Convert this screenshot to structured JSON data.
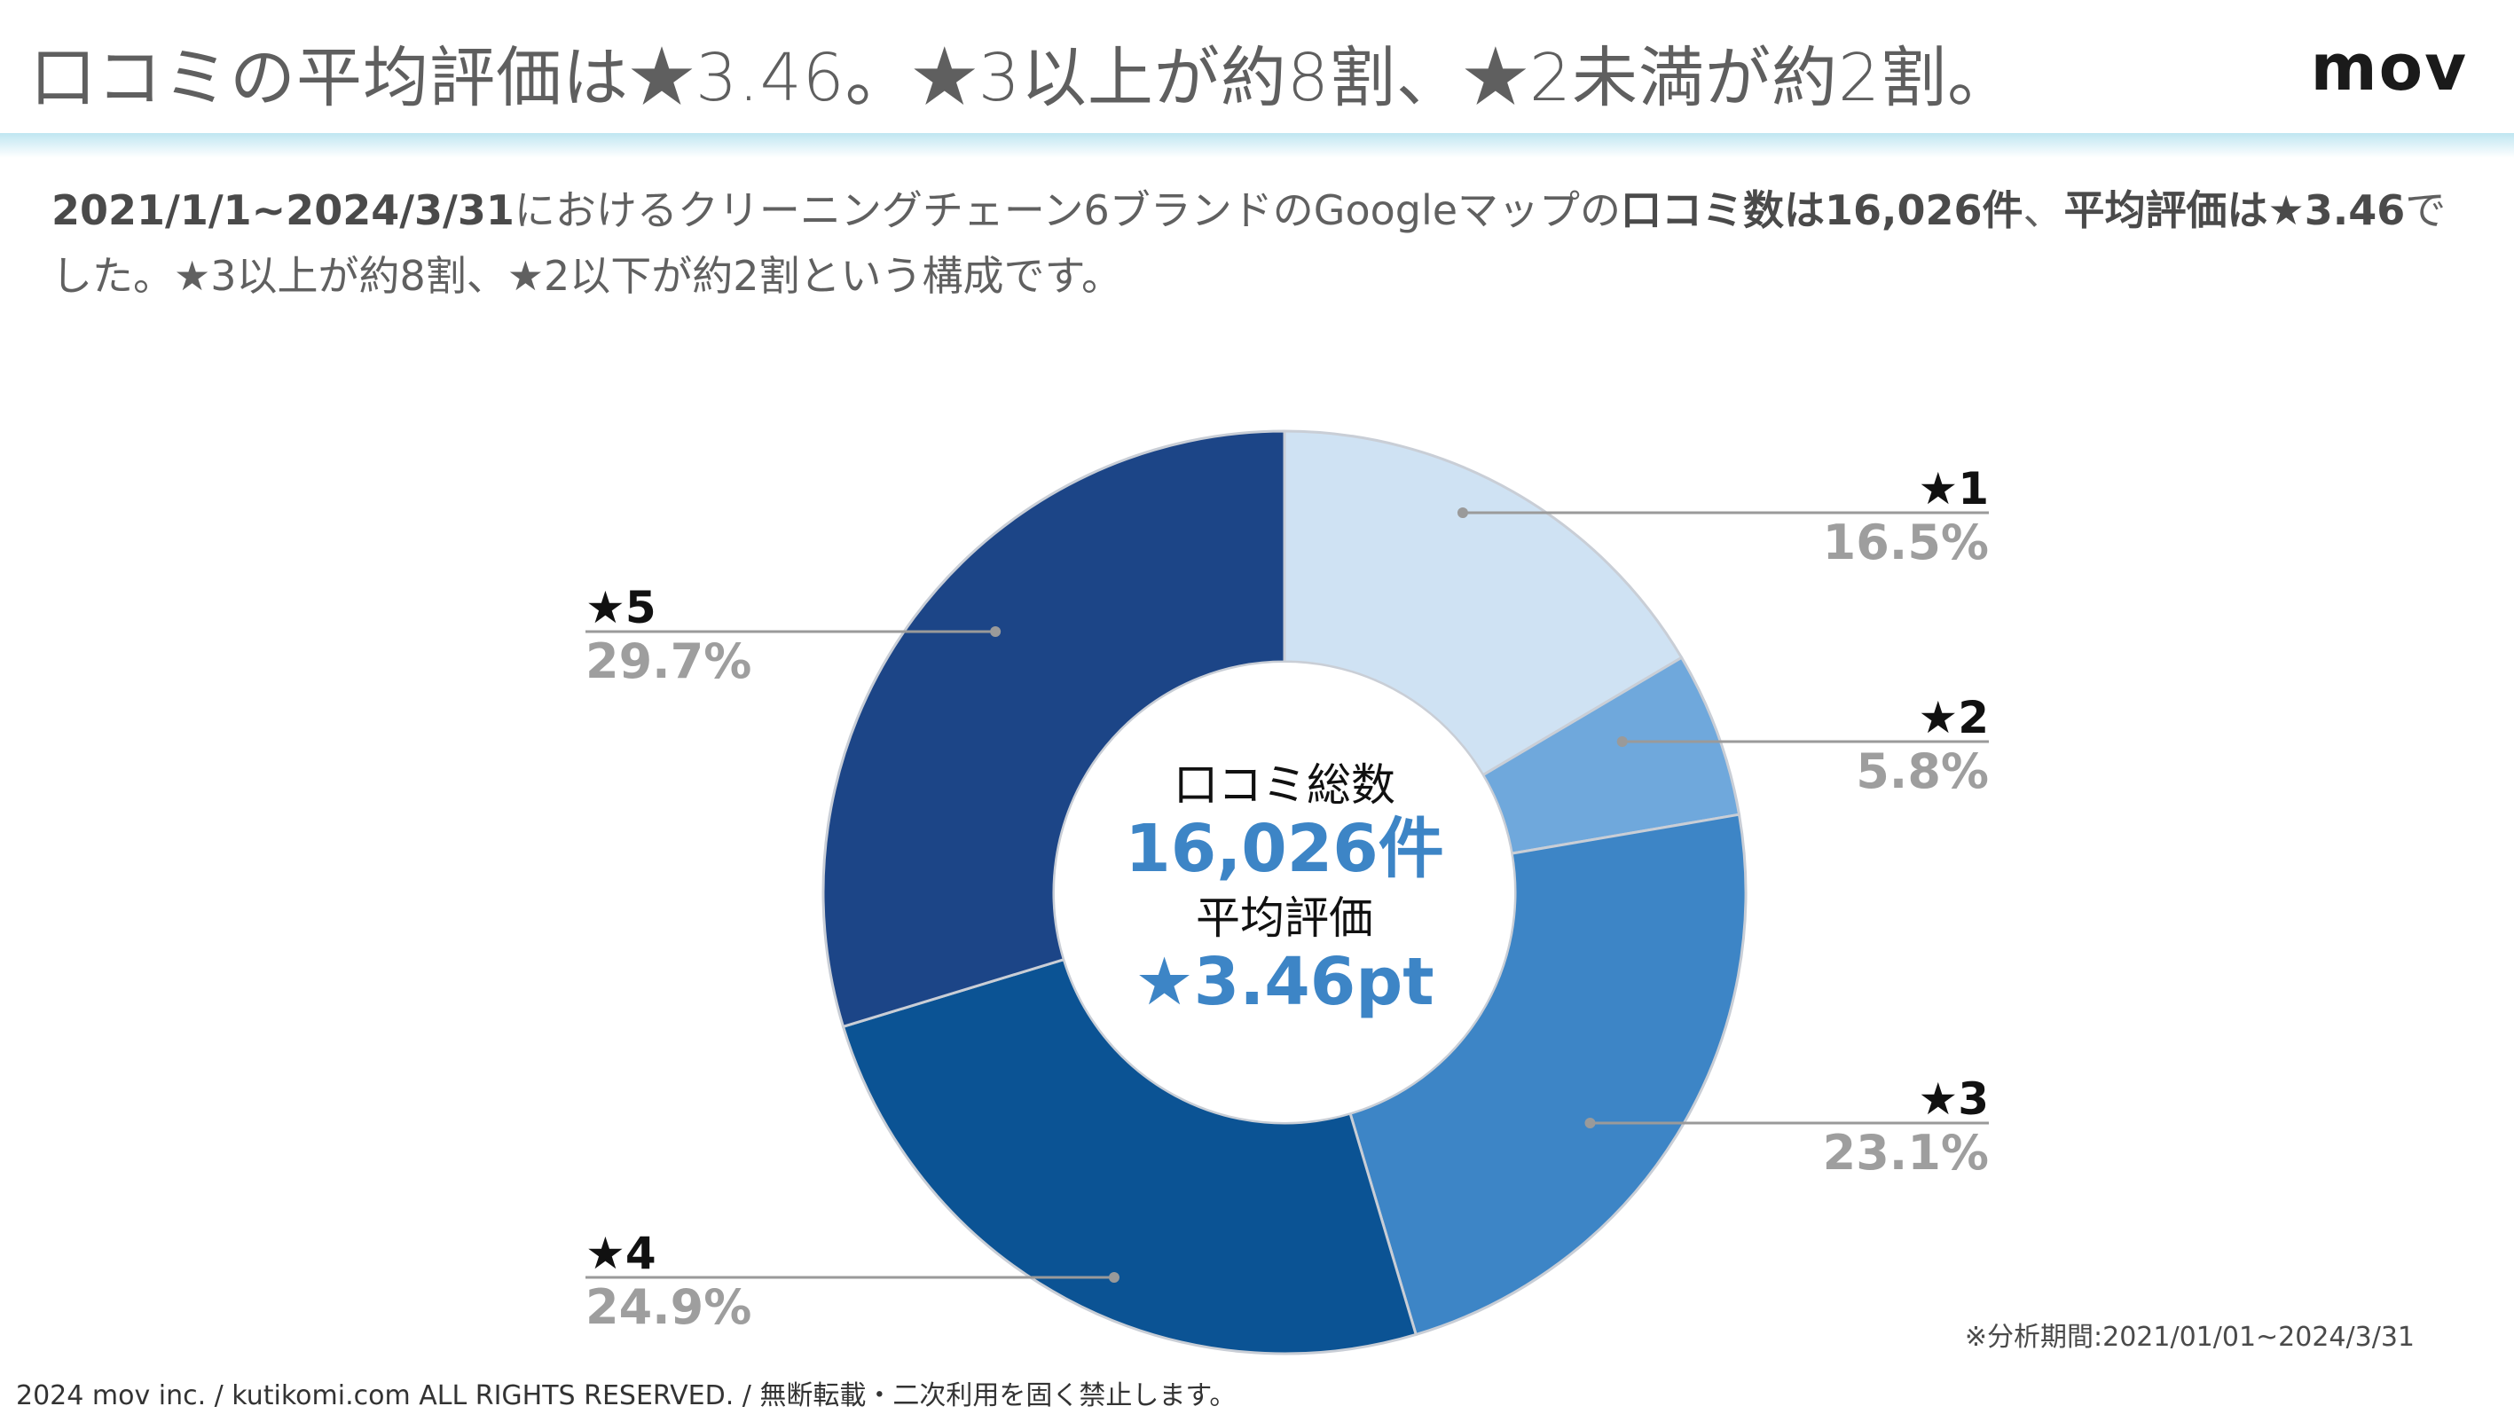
{
  "header": {
    "title": "口コミの平均評価は★3.46。★3以上が約8割、★2未満が約2割。",
    "logo": "mov"
  },
  "description": {
    "p1": "2021/1/1~2024/3/31",
    "p2": "におけるクリーニングチェーン6ブランドのGoogleマップの",
    "p3": "口コミ数は16,026件",
    "p4": "、",
    "p5": "平均評価は★3.46",
    "p6": "でした。★3以上が約8割、★2以下が約2割という構成です。"
  },
  "chart_data": {
    "type": "pie",
    "categories": [
      "★1",
      "★2",
      "★3",
      "★4",
      "★5"
    ],
    "values": [
      16.5,
      5.8,
      23.1,
      24.9,
      29.7
    ],
    "value_labels": [
      "16.5%",
      "5.8%",
      "23.1%",
      "24.9%",
      "29.7%"
    ],
    "colors": [
      "#cfe2f3",
      "#6fa8dc",
      "#3d85c6",
      "#0b5394",
      "#1c4587"
    ],
    "center": {
      "line1": "口コミ総数",
      "line2": "16,026件",
      "line3": "平均評価",
      "line4": "★3.46pt"
    },
    "accent_color": "#3d85c6"
  },
  "footer": {
    "note": "※分析期間:2021/01/01~2024/3/31",
    "copyright": "2024 mov inc. / kutikomi.com ALL RIGHTS RESERVED. / 無断転載・二次利用を固く禁止します。"
  }
}
